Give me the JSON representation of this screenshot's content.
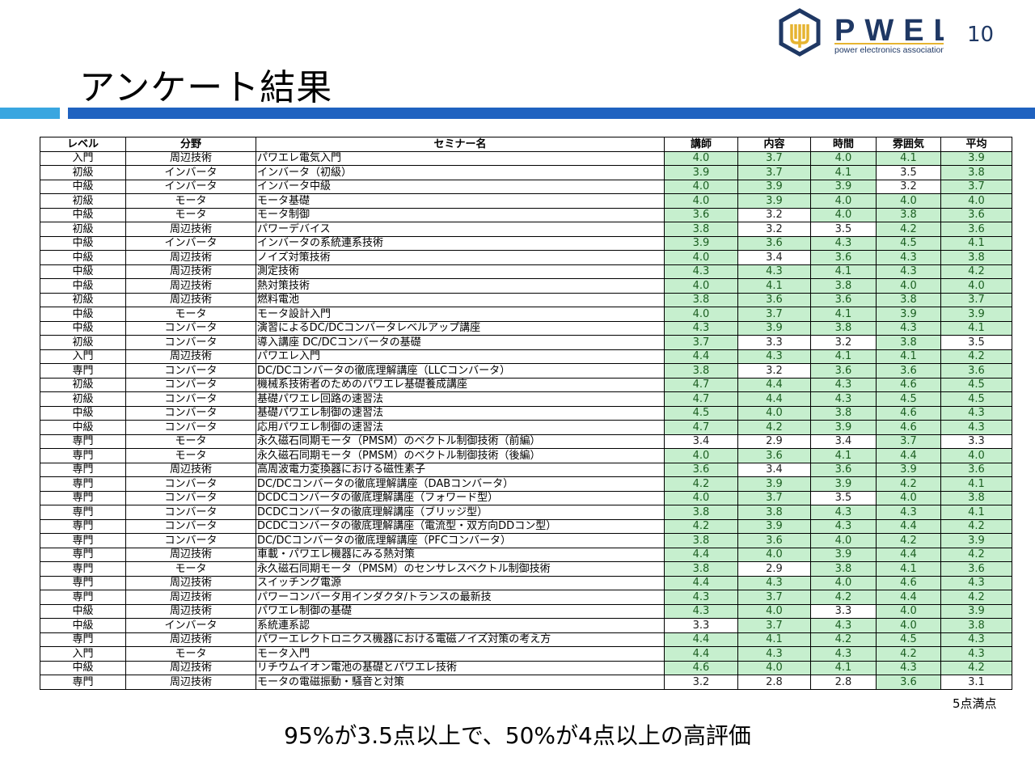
{
  "header": {
    "logo_text": "PWEL",
    "logo_subtext": "power electronics association",
    "page_number": "10",
    "title": "アンケート結果",
    "colors": {
      "brand_navy": "#1f3864",
      "brand_gold": "#e6b431",
      "rule_light": "#39a6e0",
      "rule_dark": "#1f62c0",
      "highlight": "#c6efce"
    }
  },
  "table": {
    "headers": [
      "レベル",
      "分野",
      "セミナー名",
      "講師",
      "内容",
      "時間",
      "雰囲気",
      "平均"
    ],
    "rows": [
      [
        "入門",
        "周辺技術",
        "パワエレ電気入門",
        "4.0",
        "3.7",
        "4.0",
        "4.1",
        "3.9"
      ],
      [
        "初級",
        "インバータ",
        "インバータ（初級）",
        "3.9",
        "3.7",
        "4.1",
        "3.5",
        "3.8"
      ],
      [
        "中級",
        "インバータ",
        "インバータ中級",
        "4.0",
        "3.9",
        "3.9",
        "3.2",
        "3.7"
      ],
      [
        "初級",
        "モータ",
        "モータ基礎",
        "4.0",
        "3.9",
        "4.0",
        "4.0",
        "4.0"
      ],
      [
        "中級",
        "モータ",
        "モータ制御",
        "3.6",
        "3.2",
        "4.0",
        "3.8",
        "3.6"
      ],
      [
        "初級",
        "周辺技術",
        "パワーデバイス",
        "3.8",
        "3.2",
        "3.5",
        "4.2",
        "3.6"
      ],
      [
        "中級",
        "インバータ",
        "インバータの系統連系技術",
        "3.9",
        "3.6",
        "4.3",
        "4.5",
        "4.1"
      ],
      [
        "中級",
        "周辺技術",
        "ノイズ対策技術",
        "4.0",
        "3.4",
        "3.6",
        "4.3",
        "3.8"
      ],
      [
        "中級",
        "周辺技術",
        "測定技術",
        "4.3",
        "4.3",
        "4.1",
        "4.3",
        "4.2"
      ],
      [
        "中級",
        "周辺技術",
        "熱対策技術",
        "4.0",
        "4.1",
        "3.8",
        "4.0",
        "4.0"
      ],
      [
        "初級",
        "周辺技術",
        "燃料電池",
        "3.8",
        "3.6",
        "3.6",
        "3.8",
        "3.7"
      ],
      [
        "中級",
        "モータ",
        "モータ設計入門",
        "4.0",
        "3.7",
        "4.1",
        "3.9",
        "3.9"
      ],
      [
        "中級",
        "コンバータ",
        "演習によるDC/DCコンバータレベルアップ講座",
        "4.3",
        "3.9",
        "3.8",
        "4.3",
        "4.1"
      ],
      [
        "初級",
        "コンバータ",
        "導入講座 DC/DCコンバータの基礎",
        "3.7",
        "3.3",
        "3.2",
        "3.8",
        "3.5"
      ],
      [
        "入門",
        "周辺技術",
        "パワエレ入門",
        "4.4",
        "4.3",
        "4.1",
        "4.1",
        "4.2"
      ],
      [
        "専門",
        "コンバータ",
        "DC/DCコンバータの徹底理解講座（LLCコンバータ）",
        "3.8",
        "3.2",
        "3.6",
        "3.6",
        "3.6"
      ],
      [
        "初級",
        "コンバータ",
        "機械系技術者のためのパワエレ基礎養成講座",
        "4.7",
        "4.4",
        "4.3",
        "4.6",
        "4.5"
      ],
      [
        "初級",
        "コンバータ",
        "基礎パワエレ回路の速習法",
        "4.7",
        "4.4",
        "4.3",
        "4.5",
        "4.5"
      ],
      [
        "中級",
        "コンバータ",
        "基礎パワエレ制御の速習法",
        "4.5",
        "4.0",
        "3.8",
        "4.6",
        "4.3"
      ],
      [
        "中級",
        "コンバータ",
        "応用パワエレ制御の速習法",
        "4.7",
        "4.2",
        "3.9",
        "4.6",
        "4.3"
      ],
      [
        "専門",
        "モータ",
        "永久磁石同期モータ（PMSM）のベクトル制御技術（前編）",
        "3.4",
        "2.9",
        "3.4",
        "3.7",
        "3.3"
      ],
      [
        "専門",
        "モータ",
        "永久磁石同期モータ（PMSM）のベクトル制御技術（後編）",
        "4.0",
        "3.6",
        "4.1",
        "4.4",
        "4.0"
      ],
      [
        "専門",
        "周辺技術",
        "高周波電力変換器における磁性素子",
        "3.6",
        "3.4",
        "3.6",
        "3.9",
        "3.6"
      ],
      [
        "専門",
        "コンバータ",
        "DC/DCコンバータの徹底理解講座（DABコンバータ）",
        "4.2",
        "3.9",
        "3.9",
        "4.2",
        "4.1"
      ],
      [
        "専門",
        "コンバータ",
        "DCDCコンバータの徹底理解講座（フォワード型）",
        "4.0",
        "3.7",
        "3.5",
        "4.0",
        "3.8"
      ],
      [
        "専門",
        "コンバータ",
        "DCDCコンバータの徹底理解講座（ブリッジ型）",
        "3.8",
        "3.8",
        "4.3",
        "4.3",
        "4.1"
      ],
      [
        "専門",
        "コンバータ",
        "DCDCコンバータの徹底理解講座（電流型・双方向DDコン型）",
        "4.2",
        "3.9",
        "4.3",
        "4.4",
        "4.2"
      ],
      [
        "専門",
        "コンバータ",
        "DC/DCコンバータの徹底理解講座（PFCコンバータ）",
        "3.8",
        "3.6",
        "4.0",
        "4.2",
        "3.9"
      ],
      [
        "専門",
        "周辺技術",
        "車載・パワエレ機器にみる熱対策",
        "4.4",
        "4.0",
        "3.9",
        "4.4",
        "4.2"
      ],
      [
        "専門",
        "モータ",
        "永久磁石同期モータ（PMSM）のセンサレスベクトル制御技術",
        "3.8",
        "2.9",
        "3.8",
        "4.1",
        "3.6"
      ],
      [
        "専門",
        "周辺技術",
        "スイッチング電源",
        "4.4",
        "4.3",
        "4.0",
        "4.6",
        "4.3"
      ],
      [
        "専門",
        "周辺技術",
        "パワーコンバータ用インダクタ/トランスの最新技",
        "4.3",
        "3.7",
        "4.2",
        "4.4",
        "4.2"
      ],
      [
        "中級",
        "周辺技術",
        "パワエレ制御の基礎",
        "4.3",
        "4.0",
        "3.3",
        "4.0",
        "3.9"
      ],
      [
        "中級",
        "インバータ",
        "系統連系認",
        "3.3",
        "3.7",
        "4.3",
        "4.0",
        "3.8"
      ],
      [
        "専門",
        "周辺技術",
        "パワーエレクトロニクス機器における電磁ノイズ対策の考え方",
        "4.4",
        "4.1",
        "4.2",
        "4.5",
        "4.3"
      ],
      [
        "入門",
        "モータ",
        "モータ入門",
        "4.4",
        "4.3",
        "4.3",
        "4.2",
        "4.3"
      ],
      [
        "中級",
        "周辺技術",
        "リチウムイオン電池の基礎とパワエレ技術",
        "4.6",
        "4.0",
        "4.1",
        "4.3",
        "4.2"
      ],
      [
        "専門",
        "周辺技術",
        "モータの電磁振動・騒音と対策",
        "3.2",
        "2.8",
        "2.8",
        "3.6",
        "3.1"
      ]
    ],
    "highlight_threshold": 3.5
  },
  "footer": {
    "scale_note": "5点満点",
    "summary": "95%が3.5点以上で、50%が4点以上の高評価"
  }
}
